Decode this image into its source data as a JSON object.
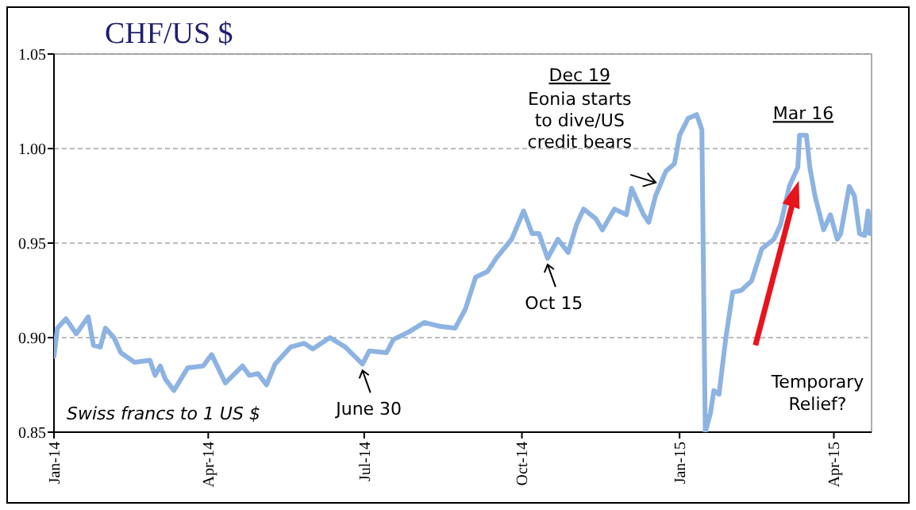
{
  "chart_data": {
    "type": "line",
    "title": "CHF/US $",
    "x": [
      "2014-01-01",
      "2014-01-03",
      "2014-01-08",
      "2014-01-14",
      "2014-01-21",
      "2014-01-24",
      "2014-01-28",
      "2014-01-31",
      "2014-02-05",
      "2014-02-09",
      "2014-02-17",
      "2014-02-26",
      "2014-03-01",
      "2014-03-04",
      "2014-03-07",
      "2014-03-12",
      "2014-03-20",
      "2014-03-29",
      "2014-04-03",
      "2014-04-11",
      "2014-04-21",
      "2014-04-25",
      "2014-04-30",
      "2014-05-05",
      "2014-05-10",
      "2014-05-19",
      "2014-05-27",
      "2014-06-01",
      "2014-06-11",
      "2014-06-20",
      "2014-06-30",
      "2014-07-04",
      "2014-07-14",
      "2014-07-18",
      "2014-07-27",
      "2014-08-05",
      "2014-08-14",
      "2014-08-23",
      "2014-08-29",
      "2014-09-04",
      "2014-09-11",
      "2014-09-16",
      "2014-09-25",
      "2014-10-02",
      "2014-10-07",
      "2014-10-11",
      "2014-10-16",
      "2014-10-22",
      "2014-10-28",
      "2014-11-02",
      "2014-11-06",
      "2014-11-13",
      "2014-11-17",
      "2014-11-24",
      "2014-12-01",
      "2014-12-04",
      "2014-12-11",
      "2014-12-14",
      "2014-12-18",
      "2014-12-24",
      "2014-12-29",
      "2015-01-01",
      "2015-01-06",
      "2015-01-11",
      "2015-01-14",
      "2015-01-16",
      "2015-01-19",
      "2015-01-21",
      "2015-01-24",
      "2015-01-28",
      "2015-02-01",
      "2015-02-06",
      "2015-02-12",
      "2015-02-18",
      "2015-02-25",
      "2015-03-01",
      "2015-03-06",
      "2015-03-11",
      "2015-03-12",
      "2015-03-16",
      "2015-03-18",
      "2015-03-21",
      "2015-03-26",
      "2015-03-30",
      "2015-04-03",
      "2015-04-05",
      "2015-04-10",
      "2015-04-13",
      "2015-04-16",
      "2015-04-19",
      "2015-04-21",
      "2015-04-22"
    ],
    "series": [
      {
        "color": "#8db3e2",
        "values": [
          0.89,
          0.905,
          0.91,
          0.902,
          0.911,
          0.896,
          0.895,
          0.905,
          0.9,
          0.892,
          0.887,
          0.888,
          0.88,
          0.885,
          0.878,
          0.872,
          0.884,
          0.885,
          0.891,
          0.876,
          0.885,
          0.88,
          0.881,
          0.875,
          0.886,
          0.895,
          0.897,
          0.894,
          0.9,
          0.895,
          0.886,
          0.893,
          0.892,
          0.899,
          0.903,
          0.908,
          0.906,
          0.905,
          0.915,
          0.932,
          0.935,
          0.942,
          0.952,
          0.967,
          0.955,
          0.955,
          0.942,
          0.952,
          0.945,
          0.96,
          0.968,
          0.963,
          0.957,
          0.968,
          0.965,
          0.979,
          0.965,
          0.961,
          0.975,
          0.988,
          0.992,
          1.007,
          1.016,
          1.018,
          1.01,
          0.85,
          0.86,
          0.872,
          0.87,
          0.9,
          0.924,
          0.925,
          0.93,
          0.947,
          0.952,
          0.96,
          0.98,
          0.99,
          1.007,
          1.007,
          0.99,
          0.975,
          0.957,
          0.965,
          0.952,
          0.955,
          0.98,
          0.975,
          0.955,
          0.954,
          0.967,
          0.955
        ]
      }
    ],
    "xlim": [
      "2014-01-01",
      "2015-04-23"
    ],
    "xticks": [
      {
        "value": "2014-01-01",
        "label": "Jan-14"
      },
      {
        "value": "2014-04-01",
        "label": "Apr-14"
      },
      {
        "value": "2014-07-01",
        "label": "Jul-14"
      },
      {
        "value": "2014-10-01",
        "label": "Oct-14"
      },
      {
        "value": "2015-01-01",
        "label": "Jan-15"
      },
      {
        "value": "2015-04-01",
        "label": "Apr-15"
      }
    ],
    "ylim": [
      0.85,
      1.05
    ],
    "yticks": [
      {
        "value": 0.85,
        "label": "0.85"
      },
      {
        "value": 0.9,
        "label": "0.90"
      },
      {
        "value": 0.95,
        "label": "0.95"
      },
      {
        "value": 1.0,
        "label": "1.00"
      },
      {
        "value": 1.05,
        "label": "1.05"
      }
    ],
    "grid": "y",
    "marker": "none",
    "line_style": "solid",
    "annotations": [
      {
        "text": "June 30",
        "x": "2014-06-30",
        "y": 0.886
      },
      {
        "text": "Oct 15",
        "x": "2014-10-16",
        "y": 0.942
      },
      "Dec 19",
      "Eonia starts to dive/US credit bears",
      {
        "text": "Mar 16",
        "x": "2015-03-16",
        "y": 1.007
      },
      "Temporary Relief?",
      "Swiss francs to 1 US $"
    ]
  }
}
